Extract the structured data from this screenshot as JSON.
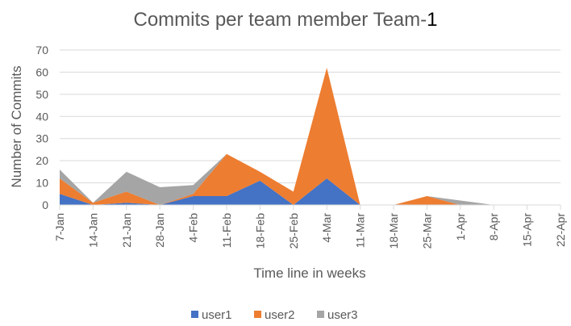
{
  "chart_data": {
    "type": "area",
    "stacked": true,
    "title": "Commits per team member Team-",
    "title_suffix": "1",
    "xlabel": "Time line in weeks",
    "ylabel": "Number of Commits",
    "ylim": [
      0,
      70
    ],
    "yticks": [
      0,
      10,
      20,
      30,
      40,
      50,
      60,
      70
    ],
    "grid": "horizontal",
    "legend_position": "bottom",
    "categories": [
      "7-Jan",
      "14-Jan",
      "21-Jan",
      "28-Jan",
      "4-Feb",
      "11-Feb",
      "18-Feb",
      "25-Feb",
      "4-Mar",
      "11-Mar",
      "18-Mar",
      "25-Mar",
      "1-Apr",
      "8-Apr",
      "15-Apr",
      "22-Apr"
    ],
    "series": [
      {
        "name": "user1",
        "color": "#4472C4",
        "values": [
          5,
          0,
          1,
          0,
          4,
          4,
          11,
          0,
          12,
          0,
          0,
          0,
          0,
          0,
          0,
          0
        ]
      },
      {
        "name": "user2",
        "color": "#ED7D31",
        "values": [
          7,
          1,
          5,
          0,
          1,
          19,
          4,
          6,
          50,
          0,
          0,
          4,
          0,
          0,
          0,
          0
        ]
      },
      {
        "name": "user3",
        "color": "#A5A5A5",
        "values": [
          4,
          0,
          9,
          8,
          4,
          0,
          0,
          0,
          0,
          0,
          0,
          0,
          2,
          0,
          0,
          0
        ]
      }
    ]
  }
}
